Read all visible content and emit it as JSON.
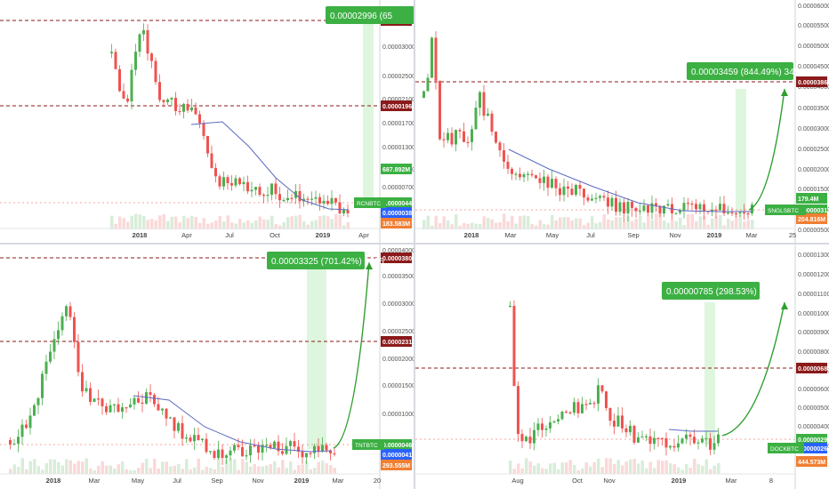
{
  "colors": {
    "up": "#26a69a",
    "up_fill": "#4caf50",
    "down": "#ef5350",
    "resistance": "#8b1a1a",
    "ma": "#5c6bc0",
    "target_bg": "#c8f0c8",
    "arrow": "#2e9e2e",
    "label_green": "#3cb043",
    "label_blue": "#2962ff",
    "label_orange": "#f07f33"
  },
  "panels": [
    {
      "id": "p1",
      "x_labels": [
        "2018",
        "Apr",
        "Jul",
        "Oct",
        "2019",
        "Apr"
      ],
      "y_ticks": [
        "0.00003000",
        "0.00002500",
        "0.00002100",
        "0.00001700",
        "0.00001300",
        "0.00001000",
        "0.00000700"
      ],
      "price_labels": {
        "resistance_top": "0.00003462",
        "resistance_mid": "0.00001968",
        "last_price": "0.00000448",
        "ma_value": "0.00000386",
        "volume_a": "687.892M",
        "volume_b": "183.583M",
        "ticker": "RCNBTC"
      },
      "callout": "0.00002996 (65",
      "chart_data": {
        "type": "candlestick",
        "x_axis": [
          "2018",
          "Apr",
          "Jul",
          "Oct",
          "2019",
          "Apr"
        ],
        "y_ticks": [
          3e-05,
          2.5e-05,
          2.1e-05,
          1.7e-05,
          1.3e-05,
          1e-05,
          7e-06
        ],
        "levels": {
          "resistance_top": 3.462e-05,
          "resistance_mid": 1.968e-05,
          "last": 4.48e-06,
          "ma": 3.86e-06
        },
        "target_move": "0.00002996 (65"
      }
    },
    {
      "id": "p2",
      "x_labels": [
        "2018",
        "Mar",
        "May",
        "Jul",
        "Sep",
        "Nov",
        "2019",
        "Mar",
        "25"
      ],
      "y_ticks": [
        "0.00006000",
        "0.00005500",
        "0.00005000",
        "0.00004500",
        "0.00004000",
        "0.00003500",
        "0.00003000",
        "0.00002500",
        "0.00002000",
        "0.00001500",
        "0.00001000",
        "0.00000500"
      ],
      "price_labels": {
        "resistance_top": "0.00003868",
        "last_price": "0.00000317",
        "volume_a": "179.4M",
        "volume_b": "204.816M",
        "ticker": "SNGLSBTC"
      },
      "callout": "0.00003459 (844.49%) 3459",
      "chart_data": {
        "type": "candlestick",
        "x_axis": [
          "2018",
          "Mar",
          "May",
          "Jul",
          "Sep",
          "Nov",
          "2019",
          "Mar",
          "25"
        ],
        "y_ticks": [
          6e-05,
          5.5e-05,
          5e-05,
          4.5e-05,
          4e-05,
          3.5e-05,
          3e-05,
          2.5e-05,
          2e-05,
          1.5e-05,
          1e-05,
          5e-06
        ],
        "levels": {
          "resistance_top": 3.868e-05,
          "last": 3.17e-06
        },
        "target_move": "0.00003459 (844.49%) 3459"
      }
    },
    {
      "id": "p3",
      "x_labels": [
        "2018",
        "Mar",
        "May",
        "Jul",
        "Sep",
        "Nov",
        "2019",
        "Mar",
        "20"
      ],
      "y_ticks": [
        "0.00004000",
        "0.00003500",
        "0.00003000",
        "0.00002500",
        "0.00002000",
        "0.00001500",
        "0.00001000"
      ],
      "price_labels": {
        "resistance_top": "0.00003809",
        "resistance_mid": "0.00002315",
        "last_price": "0.00000460",
        "ma_value": "0.00000411",
        "volume_a": "293.555M",
        "ticker": "TNTBTC"
      },
      "callout": "0.00003325 (701.42%) 3325",
      "chart_data": {
        "type": "candlestick",
        "x_axis": [
          "2018",
          "Mar",
          "May",
          "Jul",
          "Sep",
          "Nov",
          "2019",
          "Mar",
          "20"
        ],
        "y_ticks": [
          4e-05,
          3.5e-05,
          3e-05,
          2.5e-05,
          2e-05,
          1.5e-05,
          1e-05
        ],
        "levels": {
          "resistance_top": 3.809e-05,
          "resistance_mid": 2.315e-05,
          "last": 4.6e-06,
          "ma": 4.11e-06
        },
        "target_move": "0.00003325 (701.42%) 3325"
      }
    },
    {
      "id": "p4",
      "x_labels": [
        "Aug",
        "Oct",
        "Nov",
        "2019",
        "Mar",
        "8"
      ],
      "y_ticks": [
        "0.00001300",
        "0.00001200",
        "0.00001100",
        "0.00001000",
        "0.00000900",
        "0.00000800",
        "0.00000700",
        "0.00000600",
        "0.00000500",
        "0.00000400",
        "0.00000300"
      ],
      "price_labels": {
        "resistance_top": "0.00000680",
        "last_price": "0.00000293",
        "ma_value": "0.00000263",
        "volume_a": "444.573M",
        "ticker": "DOCKBTC"
      },
      "callout": "0.00000785 (298.53%) 785",
      "chart_data": {
        "type": "candlestick",
        "x_axis": [
          "Aug",
          "Oct",
          "Nov",
          "2019",
          "Mar",
          "8"
        ],
        "y_ticks": [
          1.3e-05,
          1.2e-05,
          1.1e-05,
          1e-05,
          9e-06,
          8e-06,
          7e-06,
          6e-06,
          5e-06,
          4e-06,
          3e-06
        ],
        "levels": {
          "resistance_top": 6.8e-06,
          "last": 2.93e-06,
          "ma": 2.63e-06
        },
        "target_move": "0.00000785 (298.53%) 785"
      }
    }
  ]
}
